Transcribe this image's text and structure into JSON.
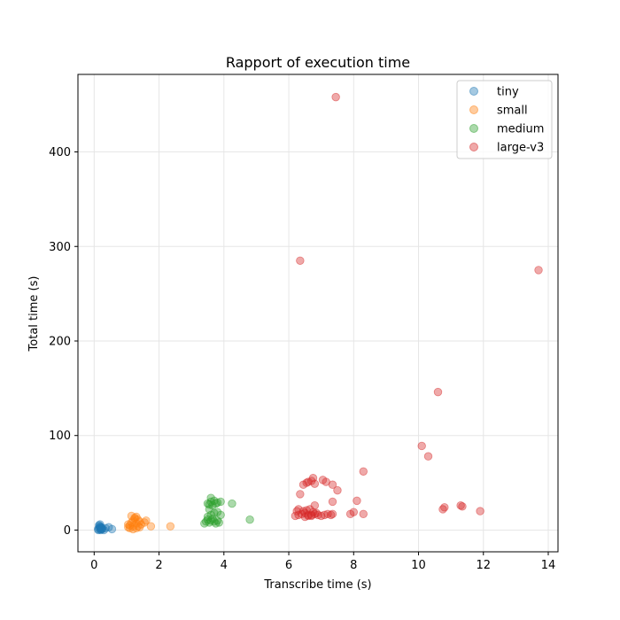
{
  "chart_data": {
    "type": "scatter",
    "title": "Rapport of execution time",
    "xlabel": "Transcribe time (s)",
    "ylabel": "Total time (s)",
    "xlim": [
      -0.5,
      14.3
    ],
    "ylim": [
      -23,
      482
    ],
    "xticks": [
      0,
      2,
      4,
      6,
      8,
      10,
      12,
      14
    ],
    "yticks": [
      0,
      100,
      200,
      300,
      400
    ],
    "grid": true,
    "legend_position": "top-right",
    "series": [
      {
        "name": "tiny",
        "color": "#1f77b4",
        "x": [
          0.12,
          0.15,
          0.18,
          0.2,
          0.22,
          0.15,
          0.18,
          0.2,
          0.25,
          0.3,
          0.22,
          0.17,
          0.13,
          0.2,
          0.24,
          0.35,
          0.45,
          0.55
        ],
        "y": [
          1,
          2,
          3,
          0,
          1,
          5,
          6,
          2,
          1,
          0,
          3,
          4,
          0,
          1,
          2,
          2,
          3,
          1
        ]
      },
      {
        "name": "small",
        "color": "#ff7f0e",
        "x": [
          1.05,
          1.1,
          1.15,
          1.2,
          1.25,
          1.3,
          1.35,
          1.4,
          1.45,
          1.1,
          1.2,
          1.3,
          1.25,
          1.15,
          1.35,
          1.05,
          1.4,
          1.2,
          1.3,
          1.55,
          1.6,
          1.75,
          2.35
        ],
        "y": [
          3,
          5,
          8,
          10,
          12,
          14,
          11,
          9,
          6,
          2,
          4,
          7,
          13,
          15,
          4,
          6,
          3,
          1,
          2,
          8,
          10,
          4,
          4
        ]
      },
      {
        "name": "medium",
        "color": "#2ca02c",
        "x": [
          3.4,
          3.45,
          3.5,
          3.55,
          3.6,
          3.65,
          3.7,
          3.75,
          3.8,
          3.85,
          3.5,
          3.6,
          3.7,
          3.8,
          3.55,
          3.65,
          3.75,
          3.9,
          3.6,
          3.7,
          3.8,
          3.55,
          3.5,
          3.9,
          4.25,
          4.8,
          3.6
        ],
        "y": [
          7,
          9,
          11,
          8,
          10,
          12,
          9,
          7,
          10,
          8,
          14,
          16,
          18,
          19,
          22,
          26,
          28,
          30,
          30,
          31,
          29,
          27,
          28,
          16,
          28,
          11,
          34
        ]
      },
      {
        "name": "large-v3",
        "color": "#d62728",
        "x": [
          6.2,
          6.3,
          6.4,
          6.5,
          6.6,
          6.7,
          6.8,
          6.9,
          7.0,
          7.1,
          7.2,
          6.45,
          6.55,
          6.65,
          6.75,
          6.85,
          6.5,
          6.6,
          6.7,
          6.35,
          6.25,
          7.3,
          7.35,
          6.3,
          6.45,
          6.55,
          6.6,
          6.7,
          6.75,
          6.8,
          7.05,
          7.15,
          7.35,
          7.5,
          7.35,
          6.8,
          7.9,
          8.0,
          8.1,
          8.3,
          8.3,
          10.1,
          10.3,
          10.6,
          10.75,
          10.8,
          11.3,
          11.35,
          11.9,
          6.35,
          7.45,
          13.7
        ],
        "y": [
          15,
          16,
          17,
          18,
          16,
          15,
          17,
          16,
          15,
          16,
          17,
          20,
          21,
          22,
          19,
          18,
          14,
          15,
          16,
          38,
          20,
          16,
          17,
          22,
          48,
          50,
          51,
          52,
          55,
          49,
          53,
          51,
          48,
          42,
          30,
          26,
          17,
          19,
          31,
          17,
          62,
          89,
          78,
          146,
          22,
          24,
          26,
          25,
          20,
          285,
          458,
          275
        ]
      }
    ]
  }
}
